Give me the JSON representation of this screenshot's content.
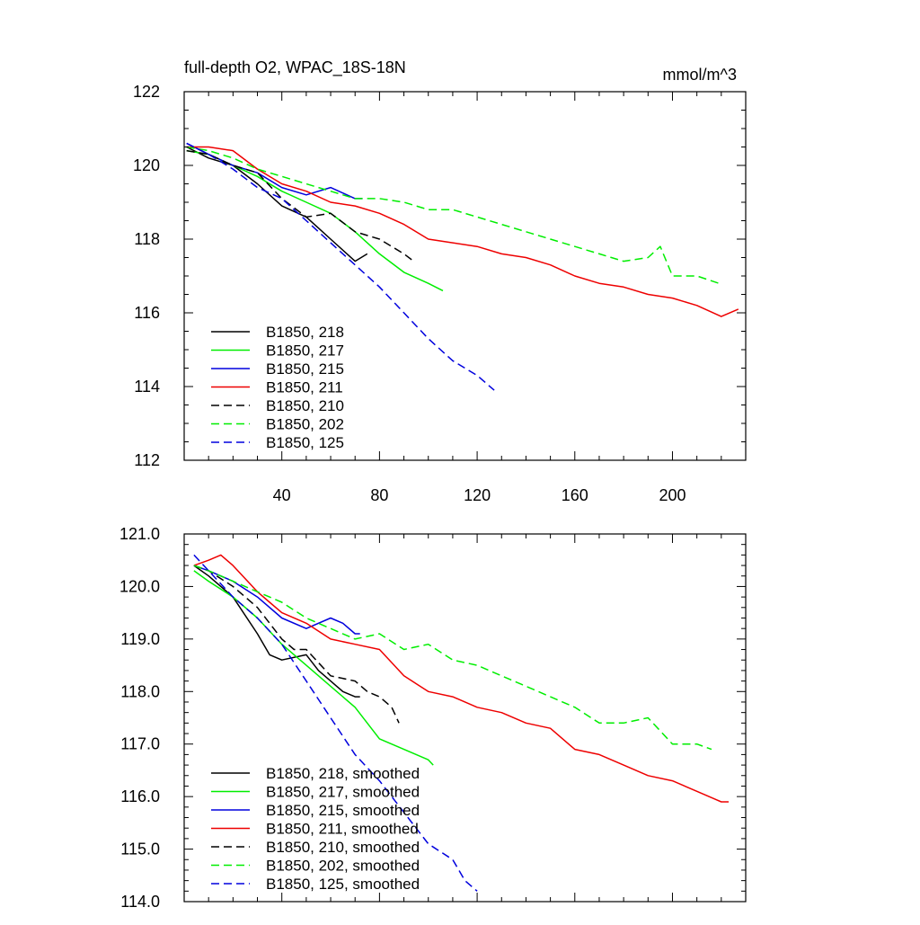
{
  "chart_data": [
    {
      "type": "line",
      "title_left": "full-depth O2, WPAC_18S-18N",
      "title_right": "mmol/m^3",
      "xlabel": "",
      "ylabel": "",
      "xlim": [
        0,
        230
      ],
      "ylim": [
        112,
        122
      ],
      "xticks": [
        40,
        80,
        120,
        160,
        200
      ],
      "xtick_labels": [
        "40",
        "80",
        "120",
        "160",
        "200"
      ],
      "yticks": [
        112,
        114,
        116,
        118,
        120,
        122
      ],
      "ytick_labels": [
        "112",
        "114",
        "116",
        "118",
        "120",
        "122"
      ],
      "legend_position": "bottom-left",
      "series": [
        {
          "name": "B1850, 218",
          "color": "#000000",
          "dash": "solid",
          "x": [
            1,
            10,
            20,
            30,
            40,
            50,
            60,
            70,
            75
          ],
          "y": [
            120.5,
            120.2,
            120.0,
            119.5,
            118.9,
            118.6,
            118.0,
            117.4,
            117.6
          ]
        },
        {
          "name": "B1850, 217",
          "color": "#00ee00",
          "dash": "solid",
          "x": [
            1,
            10,
            20,
            30,
            40,
            50,
            60,
            70,
            80,
            90,
            100,
            106
          ],
          "y": [
            120.4,
            120.3,
            120.0,
            119.7,
            119.3,
            119.0,
            118.7,
            118.2,
            117.6,
            117.1,
            116.8,
            116.6
          ]
        },
        {
          "name": "B1850, 215",
          "color": "#0000dd",
          "dash": "solid",
          "x": [
            1,
            10,
            20,
            30,
            40,
            50,
            60,
            70,
            73
          ],
          "y": [
            120.6,
            120.3,
            120.0,
            119.8,
            119.4,
            119.2,
            119.4,
            119.1,
            119.1
          ]
        },
        {
          "name": "B1850, 211",
          "color": "#ee0000",
          "dash": "solid",
          "x": [
            1,
            10,
            20,
            30,
            40,
            50,
            60,
            70,
            80,
            90,
            100,
            110,
            120,
            130,
            140,
            150,
            160,
            170,
            180,
            190,
            200,
            210,
            220,
            227
          ],
          "y": [
            120.5,
            120.5,
            120.4,
            119.9,
            119.5,
            119.3,
            119.0,
            118.9,
            118.7,
            118.4,
            118.0,
            117.9,
            117.8,
            117.6,
            117.5,
            117.3,
            117.0,
            116.8,
            116.7,
            116.5,
            116.4,
            116.2,
            115.9,
            116.1
          ]
        },
        {
          "name": "B1850, 210",
          "color": "#000000",
          "dash": "dashed",
          "x": [
            1,
            10,
            20,
            30,
            40,
            50,
            60,
            70,
            80,
            90,
            94
          ],
          "y": [
            120.4,
            120.3,
            120.0,
            119.8,
            119.1,
            118.6,
            118.7,
            118.2,
            118.0,
            117.6,
            117.4
          ]
        },
        {
          "name": "B1850, 202",
          "color": "#00ee00",
          "dash": "dashed",
          "x": [
            1,
            10,
            20,
            30,
            40,
            50,
            60,
            70,
            80,
            90,
            100,
            110,
            120,
            130,
            140,
            150,
            160,
            170,
            180,
            190,
            195,
            200,
            210,
            219
          ],
          "y": [
            120.5,
            120.4,
            120.2,
            119.9,
            119.7,
            119.5,
            119.3,
            119.1,
            119.1,
            119.0,
            118.8,
            118.8,
            118.6,
            118.4,
            118.2,
            118.0,
            117.8,
            117.6,
            117.4,
            117.5,
            117.8,
            117.0,
            117.0,
            116.8
          ]
        },
        {
          "name": "B1850, 125",
          "color": "#0000dd",
          "dash": "dashed",
          "x": [
            1,
            10,
            20,
            30,
            40,
            50,
            60,
            70,
            80,
            90,
            100,
            110,
            120,
            127
          ],
          "y": [
            120.6,
            120.3,
            119.9,
            119.4,
            119.1,
            118.5,
            117.9,
            117.3,
            116.7,
            116.0,
            115.3,
            114.7,
            114.3,
            113.9
          ]
        }
      ]
    },
    {
      "type": "line",
      "title_left": "",
      "title_right": "",
      "xlabel": "",
      "ylabel": "",
      "xlim": [
        0,
        230
      ],
      "ylim": [
        114.0,
        121.0
      ],
      "xticks": [
        40,
        80,
        120,
        160,
        200
      ],
      "yticks": [
        114.0,
        115.0,
        116.0,
        117.0,
        118.0,
        119.0,
        120.0,
        121.0
      ],
      "ytick_labels": [
        "114.0",
        "115.0",
        "116.0",
        "117.0",
        "118.0",
        "119.0",
        "120.0",
        "121.0"
      ],
      "legend_position": "bottom-left",
      "series": [
        {
          "name": "B1850, 218, smoothed",
          "color": "#000000",
          "dash": "solid",
          "x": [
            4,
            10,
            20,
            30,
            35,
            40,
            50,
            55,
            60,
            65,
            70,
            72
          ],
          "y": [
            120.4,
            120.2,
            119.8,
            119.1,
            118.7,
            118.6,
            118.7,
            118.4,
            118.2,
            118.0,
            117.9,
            117.9
          ]
        },
        {
          "name": "B1850, 217, smoothed",
          "color": "#00ee00",
          "dash": "solid",
          "x": [
            4,
            10,
            20,
            30,
            40,
            50,
            60,
            70,
            80,
            90,
            100,
            102
          ],
          "y": [
            120.3,
            120.1,
            119.8,
            119.4,
            118.9,
            118.5,
            118.1,
            117.7,
            117.1,
            116.9,
            116.7,
            116.6
          ]
        },
        {
          "name": "B1850, 215, smoothed",
          "color": "#0000dd",
          "dash": "solid",
          "x": [
            4,
            10,
            20,
            30,
            40,
            50,
            60,
            65,
            70,
            72
          ],
          "y": [
            120.4,
            120.3,
            120.1,
            119.8,
            119.4,
            119.2,
            119.4,
            119.3,
            119.1,
            119.1
          ]
        },
        {
          "name": "B1850, 211, smoothed",
          "color": "#ee0000",
          "dash": "solid",
          "x": [
            4,
            10,
            15,
            20,
            30,
            35,
            40,
            50,
            60,
            70,
            80,
            90,
            100,
            110,
            120,
            130,
            140,
            150,
            160,
            170,
            180,
            190,
            200,
            210,
            220,
            223
          ],
          "y": [
            120.4,
            120.5,
            120.6,
            120.4,
            119.9,
            119.7,
            119.5,
            119.3,
            119.0,
            118.9,
            118.8,
            118.3,
            118.0,
            117.9,
            117.7,
            117.6,
            117.4,
            117.3,
            116.9,
            116.8,
            116.6,
            116.4,
            116.3,
            116.1,
            115.9,
            115.9
          ]
        },
        {
          "name": "B1850, 210, smoothed",
          "color": "#000000",
          "dash": "dashed",
          "x": [
            4,
            10,
            20,
            30,
            40,
            45,
            50,
            60,
            70,
            75,
            80,
            85,
            88
          ],
          "y": [
            120.4,
            120.3,
            120.0,
            119.6,
            119.0,
            118.8,
            118.8,
            118.3,
            118.2,
            118.0,
            117.9,
            117.7,
            117.4
          ]
        },
        {
          "name": "B1850, 202, smoothed",
          "color": "#00ee00",
          "dash": "dashed",
          "x": [
            4,
            10,
            20,
            30,
            40,
            50,
            60,
            70,
            80,
            90,
            100,
            110,
            120,
            130,
            140,
            150,
            160,
            170,
            180,
            190,
            200,
            210,
            216
          ],
          "y": [
            120.4,
            120.3,
            120.1,
            119.9,
            119.7,
            119.4,
            119.2,
            119.0,
            119.1,
            118.8,
            118.9,
            118.6,
            118.5,
            118.3,
            118.1,
            117.9,
            117.7,
            117.4,
            117.4,
            117.5,
            117.0,
            117.0,
            116.9
          ]
        },
        {
          "name": "B1850, 125, smoothed",
          "color": "#0000dd",
          "dash": "dashed",
          "x": [
            4,
            10,
            20,
            30,
            40,
            50,
            60,
            70,
            80,
            90,
            100,
            110,
            115,
            120
          ],
          "y": [
            120.6,
            120.3,
            119.8,
            119.4,
            118.9,
            118.2,
            117.5,
            116.8,
            116.3,
            115.7,
            115.1,
            114.8,
            114.4,
            114.2
          ]
        }
      ]
    }
  ]
}
